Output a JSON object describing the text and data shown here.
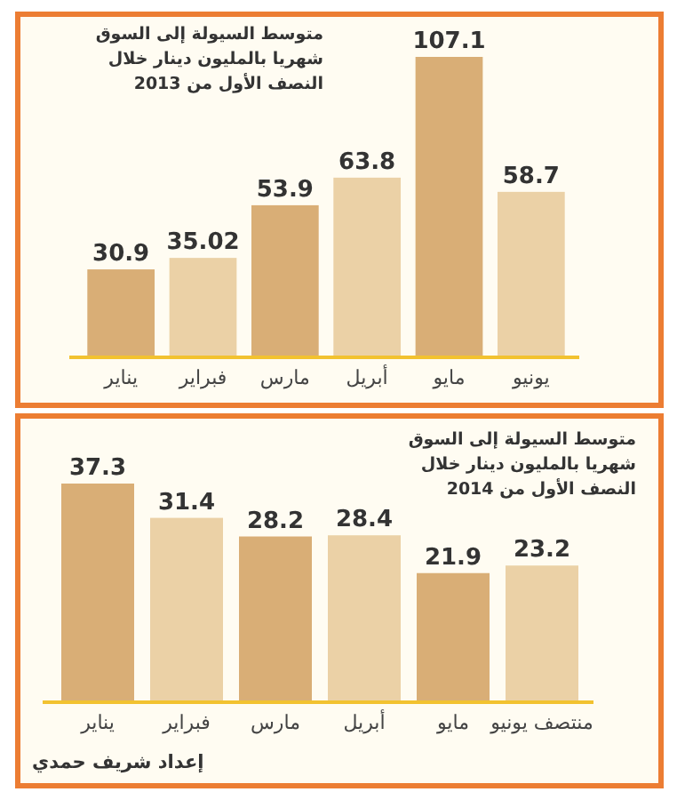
{
  "chart_data": [
    {
      "type": "bar",
      "title": "متوسط السيولة إلى السوق شهريا بالمليون دينار خلال النصف الأول من 2013",
      "categories": [
        "يناير",
        "فبراير",
        "مارس",
        "أبريل",
        "مايو",
        "يونيو"
      ],
      "values": [
        30.9,
        35.02,
        53.9,
        63.8,
        107.1,
        58.7
      ],
      "colors": [
        "#d9ae76",
        "#ebd1a6",
        "#d9ae76",
        "#ebd1a6",
        "#d9ae76",
        "#ebd1a6"
      ],
      "data_labels": true
    },
    {
      "type": "bar",
      "title": "متوسط السيولة إلى السوق شهريا بالمليون دينار خلال النصف الأول من 2014",
      "categories": [
        "يناير",
        "فبراير",
        "مارس",
        "أبريل",
        "مايو",
        "منتصف يونيو"
      ],
      "values": [
        37.3,
        31.4,
        28.2,
        28.4,
        21.9,
        23.2
      ],
      "colors": [
        "#d9ae76",
        "#ebd1a6",
        "#d9ae76",
        "#ebd1a6",
        "#d9ae76",
        "#ebd1a6"
      ],
      "data_labels": true,
      "annotations": [
        "إعداد شريف حمدي"
      ]
    }
  ]
}
